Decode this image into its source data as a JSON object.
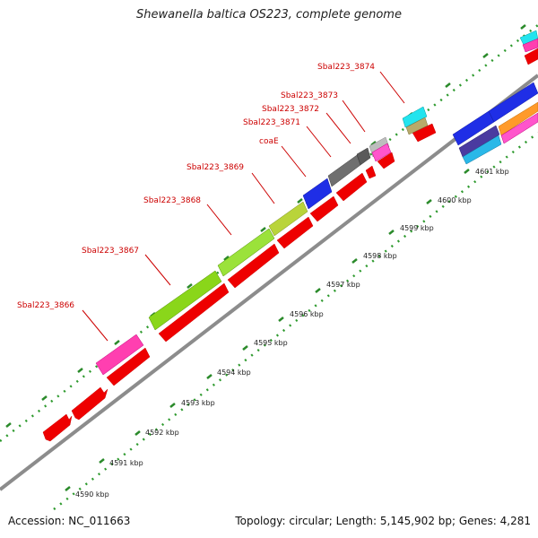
{
  "title": "Shewanella baltica OS223, complete genome",
  "accession": "Accession: NC_011663",
  "topology": "Topology: circular; Length: 5,145,902 bp; Genes: 4,281",
  "colors": {
    "backbone": "#8c8c8c",
    "tick_major": "#2a8a2a",
    "tick_minor": "#3aa83a",
    "cds": "#ee0000",
    "label": "#cc0000"
  },
  "ticks": [
    "4590 kbp",
    "4591 kbp",
    "4592 kbp",
    "4593 kbp",
    "4594 kbp",
    "4595 kbp",
    "4596 kbp",
    "4597 kbp",
    "4598 kbp",
    "4599 kbp",
    "4600 kbp",
    "4601 kbp"
  ],
  "gene_labels": [
    "Sbal223_3866",
    "Sbal223_3867",
    "Sbal223_3868",
    "Sbal223_3869",
    "coaE",
    "Sbal223_3871",
    "Sbal223_3872",
    "Sbal223_3873",
    "Sbal223_3874"
  ]
}
